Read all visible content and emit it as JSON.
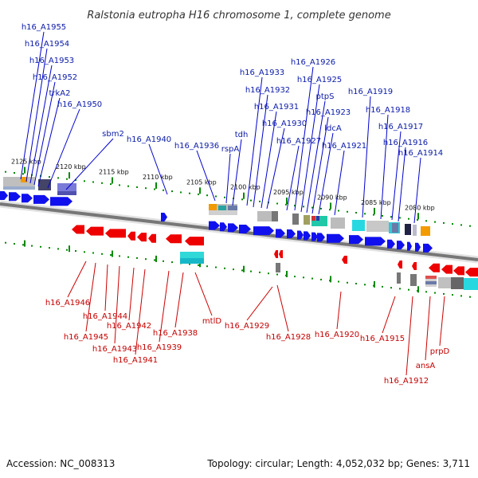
{
  "title": "Ralstonia eutropha H16 chromosome 1, complete genome",
  "accession": "Accession: NC_008313",
  "topology": "Topology: circular; Length: 4,052,032 bp; Genes: 3,711",
  "colors": {
    "forward": "#1010ee",
    "reverse": "#ee0000",
    "backbone": "#777777",
    "tick": "#008800",
    "top_line": "#0000cc",
    "bottom_line": "#cc0000"
  },
  "scale": {
    "positions_kbp": [
      2125,
      2120,
      2115,
      2110,
      2105,
      2100,
      2095,
      2090,
      2085,
      2080
    ],
    "labels": [
      "2125 kbp",
      "2120 kbp",
      "2115 kbp",
      "2110 kbp",
      "2105 kbp",
      "2100 kbp",
      "2095 kbp",
      "2090 kbp",
      "2085 kbp",
      "2080 kbp"
    ]
  },
  "top_labels": [
    "h16_A1955",
    "h16_A1954",
    "h16_A1953",
    "h16_A1952",
    "trkA2",
    "h16_A1950",
    "sbm2",
    "h16_A1940",
    "h16_A1936",
    "rspA",
    "tdh",
    "h16_A1933",
    "h16_A1932",
    "h16_A1931",
    "h16_A1930",
    "h16_A1927",
    "h16_A1926",
    "h16_A1925",
    "ptpS",
    "h16_A1923",
    "ldcA",
    "h16_A1921",
    "h16_A1919",
    "h16_A1918",
    "h16_A1917",
    "h16_A1916",
    "h16_A1914"
  ],
  "bottom_labels": [
    "h16_A1946",
    "h16_A1945",
    "h16_A1944",
    "h16_A1943",
    "h16_A1942",
    "h16_A1941",
    "h16_A1939",
    "h16_A1938",
    "mtlD",
    "h16_A1929",
    "h16_A1928",
    "h16_A1920",
    "h16_A1915",
    "h16_A1912",
    "ansA",
    "prpD"
  ]
}
